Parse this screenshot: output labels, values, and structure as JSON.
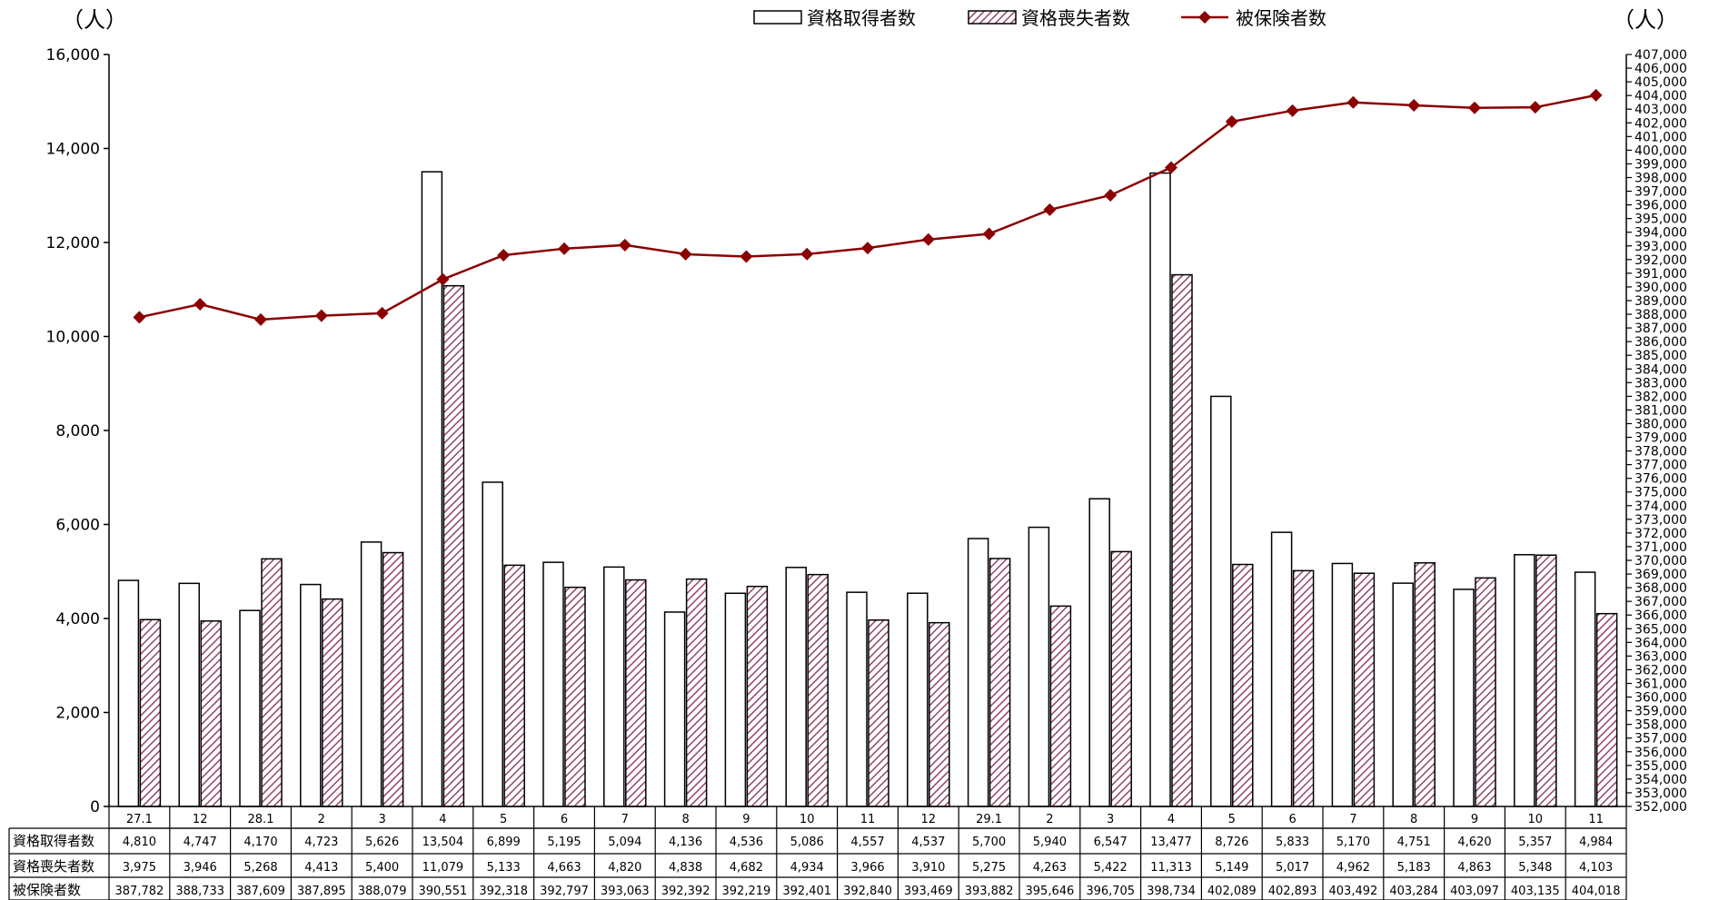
{
  "chart_data": {
    "type": "bar",
    "left_unit": "（人）",
    "right_unit": "（人）",
    "categories": [
      "27.1",
      "12",
      "28.1",
      "2",
      "3",
      "4",
      "5",
      "6",
      "7",
      "8",
      "9",
      "10",
      "11",
      "12",
      "29.1",
      "2",
      "3",
      "4",
      "5",
      "6",
      "7",
      "8",
      "9",
      "10",
      "11"
    ],
    "y_left": {
      "min": 0,
      "max": 16000,
      "step": 2000,
      "tick_labels": [
        "0",
        "2,000",
        "4,000",
        "6,000",
        "8,000",
        "10,000",
        "12,000",
        "14,000",
        "16,000"
      ]
    },
    "y_right": {
      "min": 352000,
      "max": 407000,
      "step": 1000
    },
    "legend_position": "top-right",
    "grid": false,
    "series": [
      {
        "name": "資格取得者数",
        "kind": "bar",
        "fill": "#ffffff",
        "stroke": "#000000",
        "values": [
          4810,
          4747,
          4170,
          4723,
          5626,
          13504,
          6899,
          5195,
          5094,
          4136,
          4536,
          5086,
          4557,
          4537,
          5700,
          5940,
          6547,
          13477,
          8726,
          5833,
          5170,
          4751,
          4620,
          5357,
          4984
        ],
        "labels": [
          "4,810",
          "4,747",
          "4,170",
          "4,723",
          "5,626",
          "13,504",
          "6,899",
          "5,195",
          "5,094",
          "4,136",
          "4,536",
          "5,086",
          "4,557",
          "4,537",
          "5,700",
          "5,940",
          "6,547",
          "13,477",
          "8,726",
          "5,833",
          "5,170",
          "4,751",
          "4,620",
          "5,357",
          "4,984"
        ]
      },
      {
        "name": "資格喪失者数",
        "kind": "bar",
        "fill": "hatch",
        "hatch_color": "#93456a",
        "stroke": "#000000",
        "values": [
          3975,
          3946,
          5268,
          4413,
          5400,
          11079,
          5133,
          4663,
          4820,
          4838,
          4682,
          4934,
          3966,
          3910,
          5275,
          4263,
          5422,
          11313,
          5149,
          5017,
          4962,
          5183,
          4863,
          5348,
          4103
        ],
        "labels": [
          "3,975",
          "3,946",
          "5,268",
          "4,413",
          "5,400",
          "11,079",
          "5,133",
          "4,663",
          "4,820",
          "4,838",
          "4,682",
          "4,934",
          "3,966",
          "3,910",
          "5,275",
          "4,263",
          "5,422",
          "11,313",
          "5,149",
          "5,017",
          "4,962",
          "5,183",
          "4,863",
          "5,348",
          "4,103"
        ]
      },
      {
        "name": "被保険者数",
        "kind": "line",
        "axis": "right",
        "color": "#8b0000",
        "values": [
          387782,
          388733,
          387609,
          387895,
          388079,
          390551,
          392318,
          392797,
          393063,
          392392,
          392219,
          392401,
          392840,
          393469,
          393882,
          395646,
          396705,
          398734,
          402089,
          402893,
          403492,
          403284,
          403097,
          403135,
          404018
        ],
        "labels": [
          "387,782",
          "388,733",
          "387,609",
          "387,895",
          "388,079",
          "390,551",
          "392,318",
          "392,797",
          "393,063",
          "392,392",
          "392,219",
          "392,401",
          "392,840",
          "393,469",
          "393,882",
          "395,646",
          "396,705",
          "398,734",
          "402,089",
          "402,893",
          "403,492",
          "403,284",
          "403,097",
          "403,135",
          "404,018"
        ]
      }
    ]
  }
}
